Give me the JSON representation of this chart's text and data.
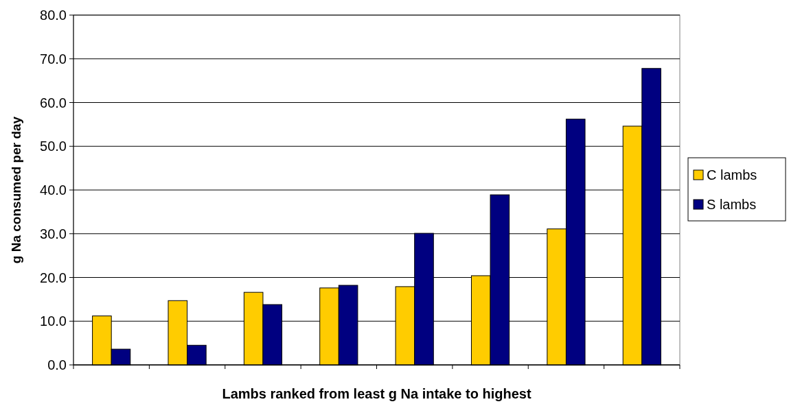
{
  "chart_data": {
    "type": "bar",
    "xlabel": "Lambs ranked from least g Na intake to highest",
    "ylabel": "g Na consumed per day",
    "categories": [
      null,
      null,
      null,
      null,
      null,
      null,
      null,
      null
    ],
    "series": [
      {
        "name": "C lambs",
        "color": "#ffcc00",
        "values": [
          11.2,
          14.7,
          16.6,
          17.6,
          17.9,
          20.4,
          31.1,
          54.6
        ]
      },
      {
        "name": "S lambs",
        "color": "#000080",
        "values": [
          3.6,
          4.5,
          13.8,
          18.2,
          30.1,
          38.9,
          56.2,
          67.8
        ]
      }
    ],
    "ylim": [
      0,
      80
    ],
    "yticks": [
      {
        "value": 0,
        "label": "0.0"
      },
      {
        "value": 10,
        "label": "10.0"
      },
      {
        "value": 20,
        "label": "20.0"
      },
      {
        "value": 30,
        "label": "30.0"
      },
      {
        "value": 40,
        "label": "40.0"
      },
      {
        "value": 50,
        "label": "50.0"
      },
      {
        "value": 60,
        "label": "60.0"
      },
      {
        "value": 70,
        "label": "70.0"
      },
      {
        "value": 80,
        "label": "80.0"
      }
    ],
    "grid": "y",
    "legend": "right"
  }
}
